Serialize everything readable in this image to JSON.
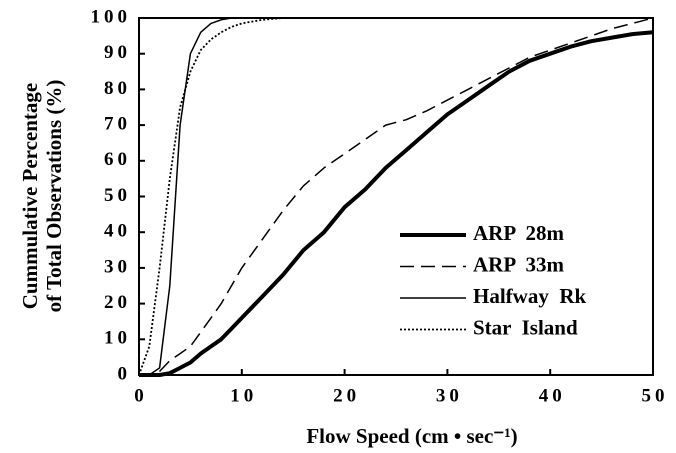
{
  "chart_data": {
    "type": "line",
    "x_label": "Flow Speed   (cm • sec⁻¹)",
    "y_label": [
      "Cummulative Percentage",
      "of Total Observations (%)"
    ],
    "x": [
      0,
      1,
      2,
      3,
      4,
      5,
      6,
      7,
      8,
      9,
      10,
      12,
      14,
      16,
      18,
      20,
      22,
      24,
      26,
      28,
      30,
      32,
      34,
      36,
      38,
      40,
      42,
      44,
      46,
      48,
      50
    ],
    "series": [
      {
        "name": "ARP  28m",
        "color": "#000000",
        "style": "bold",
        "values": [
          0,
          0,
          0,
          0.5,
          2,
          3.5,
          6,
          8,
          10,
          13,
          16,
          22,
          28,
          35,
          40,
          47,
          52,
          58,
          63,
          68,
          73,
          77,
          81,
          85,
          88,
          90,
          92,
          93.5,
          94.5,
          95.5,
          96
        ]
      },
      {
        "name": "ARP  33m",
        "color": "#000000",
        "style": "dashed",
        "values": [
          0,
          0,
          1,
          4,
          6,
          8,
          12,
          16,
          20,
          25,
          30,
          38,
          46,
          53,
          58,
          62,
          66,
          70,
          71.5,
          74,
          77,
          80,
          83,
          86,
          89,
          91,
          93,
          95,
          97,
          98.5,
          100
        ]
      },
      {
        "name": "Halfway  Rk",
        "color": "#000000",
        "style": "solid",
        "values": [
          0,
          0,
          2,
          25,
          70,
          90,
          96,
          98.5,
          99.5,
          100,
          100,
          100,
          100,
          100,
          100,
          100,
          100,
          100,
          100,
          100,
          100,
          100,
          100,
          100,
          100,
          100,
          100,
          100,
          100,
          100,
          100
        ]
      },
      {
        "name": "Star  Island",
        "color": "#000000",
        "style": "dotted",
        "values": [
          0,
          8,
          30,
          55,
          75,
          85,
          91,
          94,
          96,
          97.5,
          98.5,
          99.5,
          100,
          100,
          100,
          100,
          100,
          100,
          100,
          100,
          100,
          100,
          100,
          100,
          100,
          100,
          100,
          100,
          100,
          100,
          100
        ]
      }
    ],
    "xlim": [
      0,
      50
    ],
    "xticks": [
      0,
      10,
      20,
      30,
      40,
      50
    ],
    "ylim": [
      0,
      100
    ],
    "yticks": [
      0,
      10,
      20,
      30,
      40,
      50,
      60,
      70,
      80,
      90,
      100
    ],
    "legend": "lower right"
  }
}
